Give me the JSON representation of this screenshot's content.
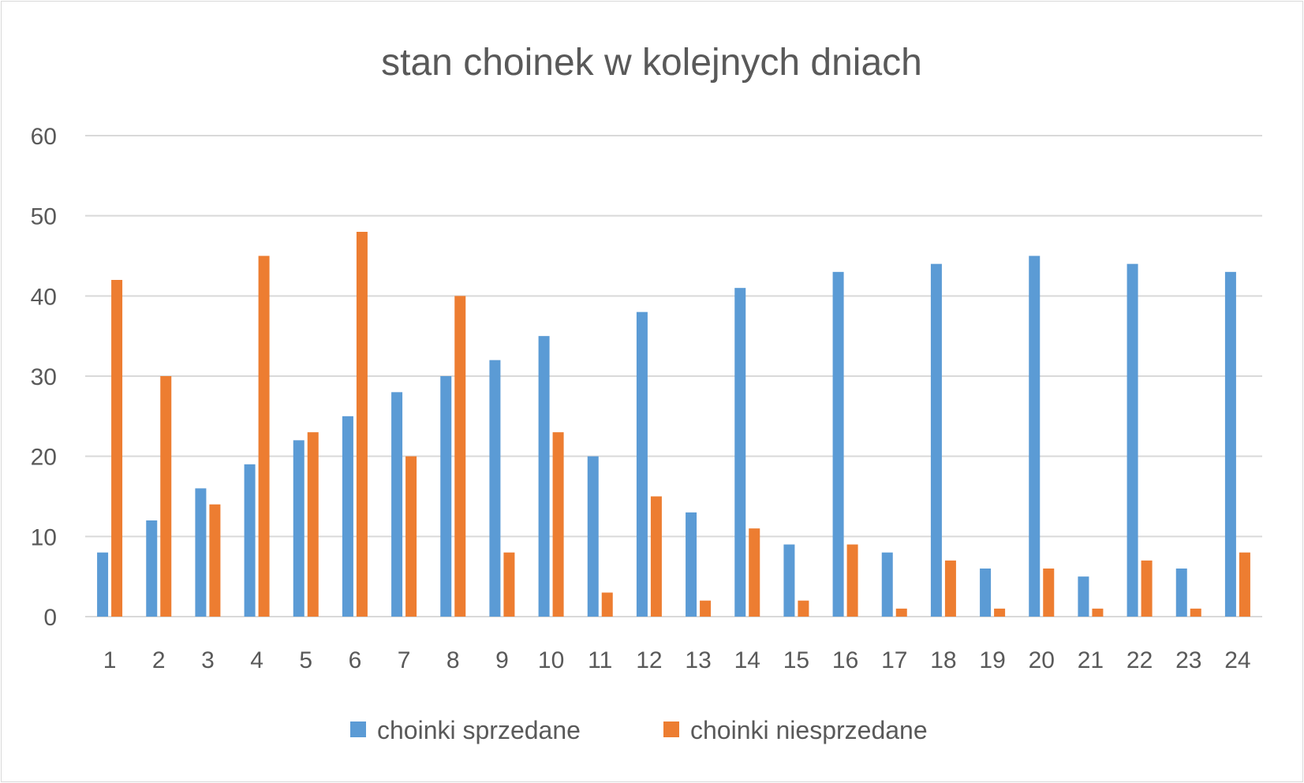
{
  "chart_data": {
    "type": "bar",
    "title": "stan choinek w kolejnych dniach",
    "xlabel": "",
    "ylabel": "",
    "ylim": [
      0,
      60
    ],
    "yticks": [
      0,
      10,
      20,
      30,
      40,
      50,
      60
    ],
    "grid": true,
    "legend_position": "bottom",
    "categories": [
      "1",
      "2",
      "3",
      "4",
      "5",
      "6",
      "7",
      "8",
      "9",
      "10",
      "11",
      "12",
      "13",
      "14",
      "15",
      "16",
      "17",
      "18",
      "19",
      "20",
      "21",
      "22",
      "23",
      "24"
    ],
    "series": [
      {
        "name": "choinki sprzedane",
        "color": "#5b9bd5",
        "values": [
          8,
          12,
          16,
          19,
          22,
          25,
          28,
          30,
          32,
          35,
          20,
          38,
          13,
          41,
          9,
          43,
          8,
          44,
          6,
          45,
          5,
          44,
          6,
          43
        ]
      },
      {
        "name": "choinki niesprzedane",
        "color": "#ed7d31",
        "values": [
          42,
          30,
          14,
          45,
          23,
          48,
          20,
          40,
          8,
          23,
          3,
          15,
          2,
          11,
          2,
          9,
          1,
          7,
          1,
          6,
          1,
          7,
          1,
          8
        ]
      }
    ]
  },
  "colors": {
    "grid": "#d9d9d9",
    "text": "#595959",
    "border": "#d9d9d9"
  }
}
